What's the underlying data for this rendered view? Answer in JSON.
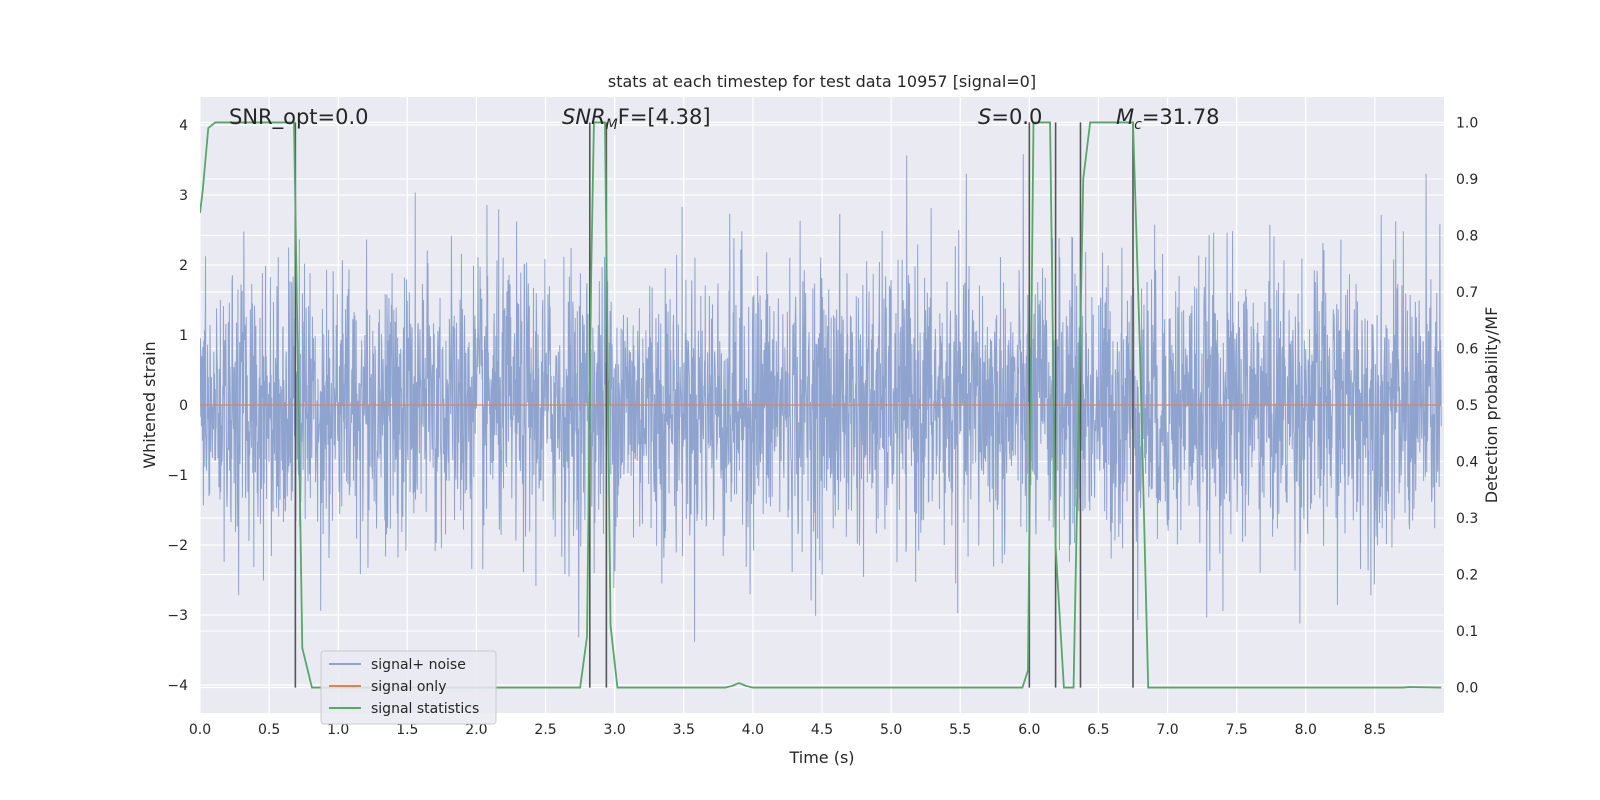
{
  "chart_data": {
    "type": "line",
    "title": "stats at each timestep for test data 10957 [signal=0]",
    "xlabel": "Time (s)",
    "ylabel_left": "Whitened strain",
    "ylabel_right": "Detection probability/MF",
    "xlim": [
      0.0,
      9.0
    ],
    "ylim_left": [
      -4.4,
      4.4
    ],
    "ylim_right": [
      -0.045,
      1.045
    ],
    "x_ticks": [
      "0.0",
      "0.5",
      "1.0",
      "1.5",
      "2.0",
      "2.5",
      "3.0",
      "3.5",
      "4.0",
      "4.5",
      "5.0",
      "5.5",
      "6.0",
      "6.5",
      "7.0",
      "7.5",
      "8.0",
      "8.5"
    ],
    "y_left_ticks": [
      "4",
      "3",
      "2",
      "1",
      "0",
      "−1",
      "−2",
      "−3",
      "−4"
    ],
    "y_right_ticks": [
      "1.0",
      "0.9",
      "0.8",
      "0.7",
      "0.6",
      "0.5",
      "0.4",
      "0.3",
      "0.2",
      "0.1",
      "0.0"
    ],
    "grid": true,
    "legend_placement": "lower-left",
    "annotations": {
      "snr_opt": "SNR_opt=0.0",
      "snr_mf_var": "SNR",
      "snr_mf_sub": "M",
      "snr_mf_rest": "F=[4.38]",
      "s_var": "S",
      "s_rest": "=0.0",
      "mc_var": "M",
      "mc_sub": "c",
      "mc_rest": "=31.78"
    },
    "series": [
      {
        "name": "signal+ noise",
        "color": "#8fa3cf",
        "x_range": [
          0.0,
          8.98
        ],
        "description_values": "whitened noise, approx gaussian, std ~1, peaks between -3.8 and 4.0"
      },
      {
        "name": "signal only",
        "color": "#dd8452",
        "x": [
          0.0,
          8.98
        ],
        "y": [
          0.0,
          0.0
        ]
      },
      {
        "name": "signal statistics",
        "color": "#55a868",
        "axis": "right",
        "x": [
          0.0,
          0.02,
          0.06,
          0.11,
          0.2,
          0.68,
          0.7,
          0.74,
          0.81,
          0.9,
          2.75,
          2.8,
          2.83,
          2.85,
          2.88,
          2.93,
          2.97,
          3.02,
          3.09,
          3.2,
          3.8,
          3.85,
          3.9,
          3.95,
          4.0,
          4.2,
          5.95,
          5.99,
          6.03,
          6.08,
          6.15,
          6.19,
          6.25,
          6.32,
          6.39,
          6.44,
          6.5,
          6.75,
          6.8,
          6.86,
          6.95,
          8.7,
          8.75,
          8.98
        ],
        "y": [
          0.84,
          0.88,
          0.99,
          1.0,
          1.0,
          1.0,
          0.7,
          0.07,
          0.0,
          0.0,
          0.0,
          0.09,
          0.73,
          1.0,
          1.0,
          1.0,
          0.11,
          0.0,
          0.0,
          0.0,
          0.0,
          0.003,
          0.008,
          0.003,
          0.0,
          0.0,
          0.0,
          0.03,
          1.0,
          1.0,
          1.0,
          0.25,
          0.0,
          0.0,
          0.9,
          1.0,
          1.0,
          1.0,
          0.6,
          0.0,
          0.0,
          0.0,
          0.001,
          0.0
        ]
      }
    ],
    "vertical_lines_x": [
      0.69,
      2.82,
      2.94,
      6.0,
      6.19,
      6.37,
      6.75
    ],
    "colors": {
      "plot_bg": "#eaeaf2",
      "grid": "#ffffff",
      "vline": "#555555"
    }
  }
}
